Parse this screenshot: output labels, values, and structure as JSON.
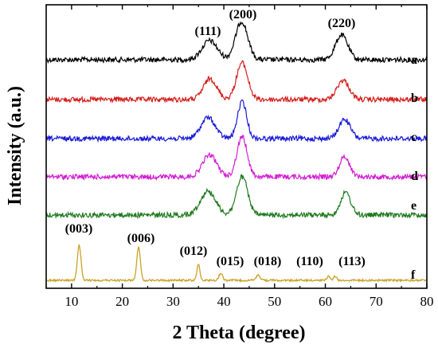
{
  "chart_data": {
    "type": "line",
    "xlabel": "2 Theta (degree)",
    "ylabel": "Intensity (a.u.)",
    "xlim": [
      5,
      80
    ],
    "xticks": [
      10,
      20,
      30,
      40,
      50,
      60,
      70,
      80
    ],
    "grid": false,
    "y_tick_labels_shown": false,
    "series": [
      {
        "name": "a",
        "color": "#000000",
        "peaks": [
          {
            "x": 37.2,
            "height": 0.5,
            "width": 1.5,
            "label": "(111)"
          },
          {
            "x": 43.5,
            "height": 1.0,
            "width": 1.2,
            "label": "(200)"
          },
          {
            "x": 63.2,
            "height": 0.65,
            "width": 1.2,
            "label": "(220)"
          }
        ]
      },
      {
        "name": "b",
        "color": "#d4201c",
        "peaks": [
          {
            "x": 37.3,
            "height": 0.6,
            "width": 1.3
          },
          {
            "x": 43.6,
            "height": 1.05,
            "width": 1.1
          },
          {
            "x": 63.5,
            "height": 0.55,
            "width": 1.2
          }
        ]
      },
      {
        "name": "c",
        "color": "#1a1ad6",
        "peaks": [
          {
            "x": 36.9,
            "height": 0.6,
            "width": 1.4
          },
          {
            "x": 43.6,
            "height": 1.05,
            "width": 0.9
          },
          {
            "x": 63.8,
            "height": 0.55,
            "width": 1.1
          }
        ]
      },
      {
        "name": "d",
        "color": "#d220d2",
        "peaks": [
          {
            "x": 37.2,
            "height": 0.6,
            "width": 1.4
          },
          {
            "x": 43.6,
            "height": 1.1,
            "width": 1.0
          },
          {
            "x": 63.8,
            "height": 0.55,
            "width": 1.0
          }
        ]
      },
      {
        "name": "e",
        "color": "#1f7a1f",
        "peaks": [
          {
            "x": 36.9,
            "height": 0.75,
            "width": 1.5
          },
          {
            "x": 43.6,
            "height": 1.2,
            "width": 1.1
          },
          {
            "x": 64.0,
            "height": 0.7,
            "width": 1.0
          }
        ]
      },
      {
        "name": "f",
        "color": "#c9a227",
        "peaks": [
          {
            "x": 11.5,
            "height": 1.0,
            "width": 0.35,
            "label": "(003)"
          },
          {
            "x": 23.2,
            "height": 0.95,
            "width": 0.35,
            "label": "(006)"
          },
          {
            "x": 35.0,
            "height": 0.45,
            "width": 0.3,
            "label": "(012)"
          },
          {
            "x": 39.4,
            "height": 0.2,
            "width": 0.35,
            "label": "(015)"
          },
          {
            "x": 46.8,
            "height": 0.15,
            "width": 0.4,
            "label": "(018)"
          },
          {
            "x": 60.6,
            "height": 0.12,
            "width": 0.3,
            "label": "(110)"
          },
          {
            "x": 61.9,
            "height": 0.12,
            "width": 0.3,
            "label": "(113)"
          }
        ]
      }
    ]
  }
}
